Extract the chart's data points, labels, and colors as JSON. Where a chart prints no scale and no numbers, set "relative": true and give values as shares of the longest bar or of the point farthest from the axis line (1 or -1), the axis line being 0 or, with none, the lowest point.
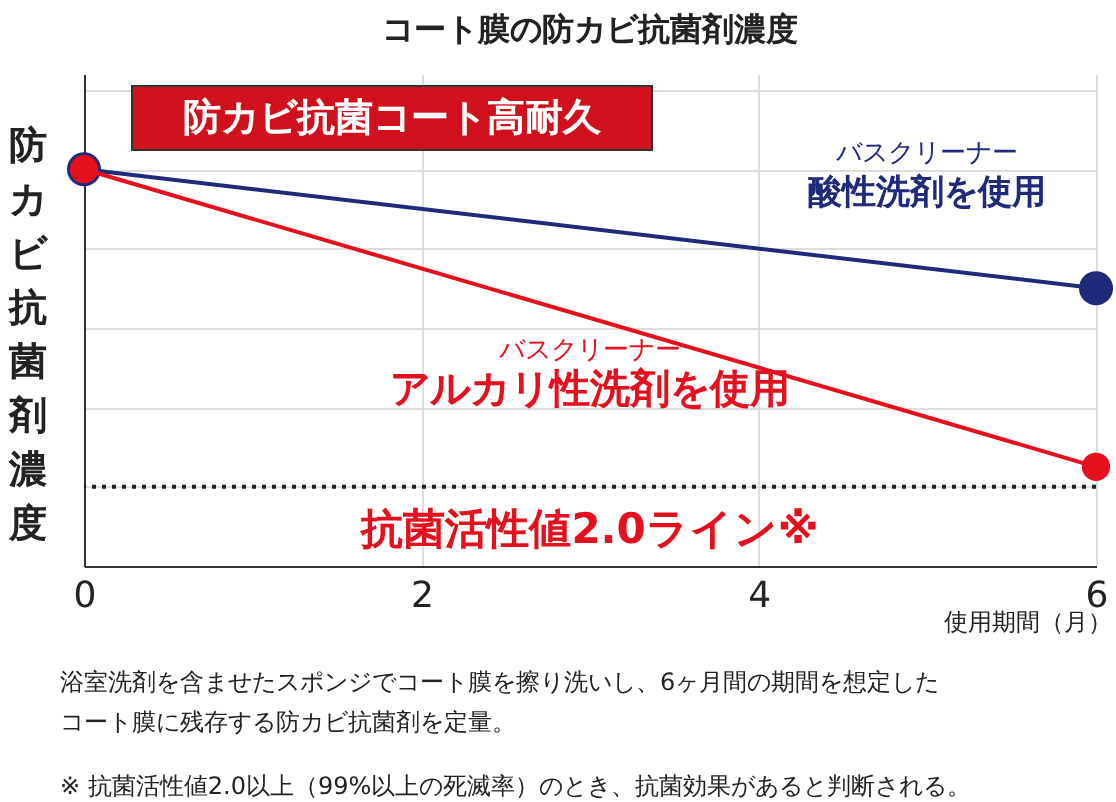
{
  "chart_data": {
    "type": "line",
    "title": "コート膜の防カビ抗菌剤濃度",
    "xlabel": "使用期間（月）",
    "ylabel": "防カビ抗菌剤濃度",
    "x": [
      0,
      6
    ],
    "xlim": [
      0,
      6
    ],
    "xticks": [
      0,
      2,
      4,
      6
    ],
    "relative": true,
    "grid": true,
    "marker": "circle",
    "line_style": "solid",
    "series": [
      {
        "name": "バスクリーナー酸性洗剤を使用",
        "color": "#1f2a7a",
        "values": [
          1,
          0.7
        ]
      },
      {
        "name": "バスクリーナーアルカリ性洗剤を使用",
        "color": "#e60f1e",
        "values": [
          1,
          0.25
        ]
      }
    ],
    "ref_lines": [
      {
        "axis": "y",
        "value": 0.2,
        "label": "抗菌活性値2.0ライン※",
        "color": "#222222",
        "line_style": "dotted"
      }
    ],
    "annotations": [
      "防カビ抗菌コート高耐久",
      "浴室洗剤を含ませたスポンジでコート膜を擦り洗いし、6ヶ月間の期間を想定した",
      "コート膜に残存する防カビ抗菌剤を定量。",
      "※ 抗菌活性値2.0以上（99%以上の死滅率）のとき、抗菌効果があると判断される。"
    ]
  }
}
